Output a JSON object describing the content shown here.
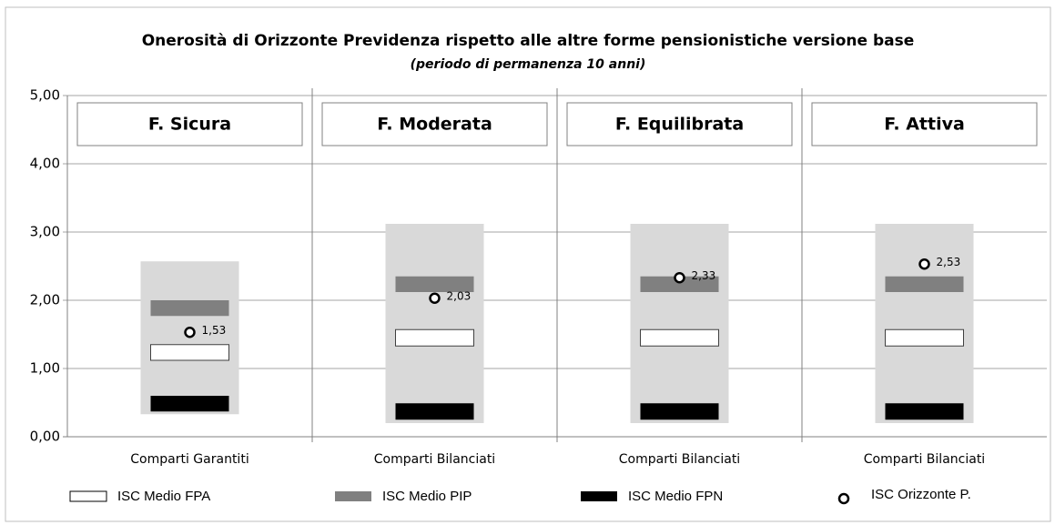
{
  "chart_data": {
    "type": "floating-bar",
    "title": "Onerosità di Orizzonte Previdenza rispetto alle altre forme pensionistiche versione base",
    "subtitle": "(periodo di permanenza 10 anni)",
    "groups": [
      "F. Sicura",
      "F. Moderata",
      "F. Equilibrata",
      "F. Attiva"
    ],
    "categories": [
      "Comparti Garantiti",
      "Comparti Bilanciati",
      "Comparti Bilanciati",
      "Comparti Bilanciati"
    ],
    "ylim": [
      0,
      5
    ],
    "yticks": [
      {
        "value": 0,
        "label": "0,00"
      },
      {
        "value": 1,
        "label": "1,00"
      },
      {
        "value": 2,
        "label": "2,00"
      },
      {
        "value": 3,
        "label": "3,00"
      },
      {
        "value": 4,
        "label": "4,00"
      },
      {
        "value": 5,
        "label": "5,00"
      }
    ],
    "grid": true,
    "series": [
      {
        "color": "#d9d9d9",
        "low": [
          0.33,
          0.2,
          0.2,
          0.2
        ],
        "high": [
          2.57,
          3.12,
          3.12,
          3.12
        ]
      },
      {
        "name": "ISC Medio FPA",
        "color": "#ffffff",
        "low": [
          1.12,
          1.33,
          1.33,
          1.33
        ],
        "high": [
          1.35,
          1.57,
          1.57,
          1.57
        ]
      },
      {
        "name": "ISC Medio PIP",
        "color": "#808080",
        "low": [
          1.77,
          2.12,
          2.12,
          2.12
        ],
        "high": [
          2.0,
          2.35,
          2.35,
          2.35
        ]
      },
      {
        "name": "ISC Medio FPN",
        "color": "#000000",
        "low": [
          0.37,
          0.25,
          0.25,
          0.25
        ],
        "high": [
          0.6,
          0.49,
          0.49,
          0.49
        ]
      }
    ],
    "points": {
      "name": "ISC Orizzonte P.",
      "values": [
        1.53,
        2.03,
        2.33,
        2.53
      ],
      "value_labels": [
        "1,53",
        "2,03",
        "2,33",
        "2,53"
      ]
    }
  }
}
